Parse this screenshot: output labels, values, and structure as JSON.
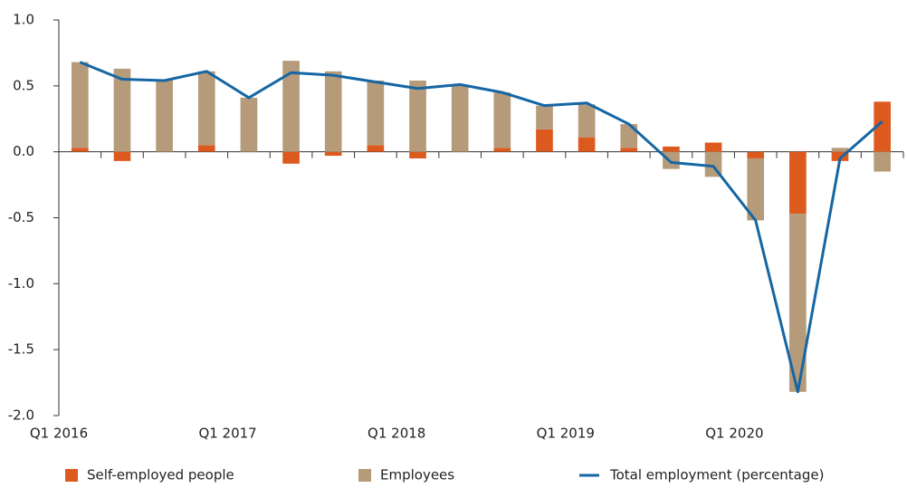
{
  "chart_data": {
    "type": "bar-line",
    "categories": [
      "Q1 2016",
      null,
      null,
      null,
      "Q1 2017",
      null,
      null,
      null,
      "Q1 2018",
      null,
      null,
      null,
      "Q1 2019",
      null,
      null,
      null,
      "Q1 2020",
      null,
      null,
      null
    ],
    "series": [
      {
        "name": "Self-employed people",
        "type": "bar",
        "color": "#dd5a1f",
        "values": [
          0.03,
          -0.07,
          0.0,
          0.05,
          0.0,
          -0.09,
          -0.03,
          0.05,
          -0.05,
          0.0,
          0.03,
          0.17,
          0.11,
          0.03,
          0.04,
          0.07,
          -0.05,
          -0.47,
          -0.07,
          0.38
        ]
      },
      {
        "name": "Employees",
        "type": "bar",
        "color": "#b59b7a",
        "values": [
          0.65,
          0.63,
          0.55,
          0.56,
          0.41,
          0.69,
          0.61,
          0.49,
          0.54,
          0.51,
          0.42,
          0.18,
          0.25,
          0.18,
          -0.13,
          -0.19,
          -0.47,
          -1.35,
          0.03,
          -0.15
        ]
      },
      {
        "name": "Total employment (percentage)",
        "type": "line",
        "color": "#1566a3",
        "values": [
          0.68,
          0.55,
          0.54,
          0.61,
          0.41,
          0.6,
          0.58,
          0.53,
          0.48,
          0.51,
          0.45,
          0.35,
          0.37,
          0.21,
          -0.08,
          -0.11,
          -0.52,
          -1.82,
          -0.05,
          0.23
        ]
      }
    ],
    "ylim": [
      -2.0,
      1.0
    ],
    "yticks": [
      {
        "value": -2.0,
        "label": "-2.0"
      },
      {
        "value": -1.5,
        "label": "-1.5"
      },
      {
        "value": -1.0,
        "label": "-1.0"
      },
      {
        "value": -0.5,
        "label": "-0.5"
      },
      {
        "value": 0.0,
        "label": "0.0"
      },
      {
        "value": 0.5,
        "label": "0.5"
      },
      {
        "value": 1.0,
        "label": "1.0"
      }
    ],
    "legend": "bottom"
  }
}
